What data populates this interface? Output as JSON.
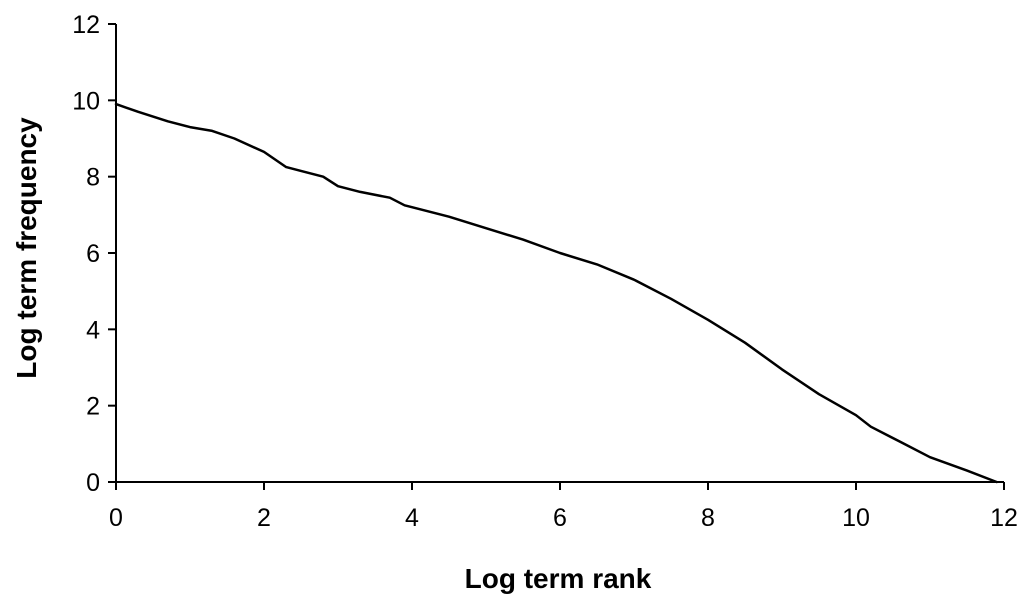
{
  "chart_data": {
    "type": "line",
    "title": "",
    "xlabel": "Log term rank",
    "ylabel": "Log term frequency",
    "xlim": [
      0,
      12
    ],
    "ylim": [
      0,
      12
    ],
    "x_ticks": [
      "0",
      "2",
      "4",
      "6",
      "8",
      "10",
      "12"
    ],
    "y_ticks": [
      "0",
      "2",
      "4",
      "6",
      "8",
      "10",
      "12"
    ],
    "grid": false,
    "legend": "none",
    "colors": {
      "line": "#000000",
      "axis": "#000000",
      "background": "#ffffff"
    },
    "series": [
      {
        "x": [
          0,
          0.3,
          0.7,
          1.0,
          1.3,
          1.6,
          2.0,
          2.3,
          2.5,
          2.8,
          3.0,
          3.3,
          3.7,
          3.9,
          4.0,
          4.5,
          5.0,
          5.5,
          6.0,
          6.5,
          7.0,
          7.5,
          8.0,
          8.5,
          9.0,
          9.5,
          10.0,
          10.2,
          10.6,
          11.0,
          11.5,
          11.9
        ],
        "y": [
          9.9,
          9.7,
          9.45,
          9.3,
          9.2,
          9.0,
          8.65,
          8.25,
          8.15,
          8.0,
          7.75,
          7.6,
          7.45,
          7.25,
          7.2,
          6.95,
          6.65,
          6.35,
          6.0,
          5.7,
          5.3,
          4.8,
          4.25,
          3.65,
          2.95,
          2.3,
          1.75,
          1.45,
          1.05,
          0.65,
          0.3,
          0.0
        ]
      }
    ]
  }
}
